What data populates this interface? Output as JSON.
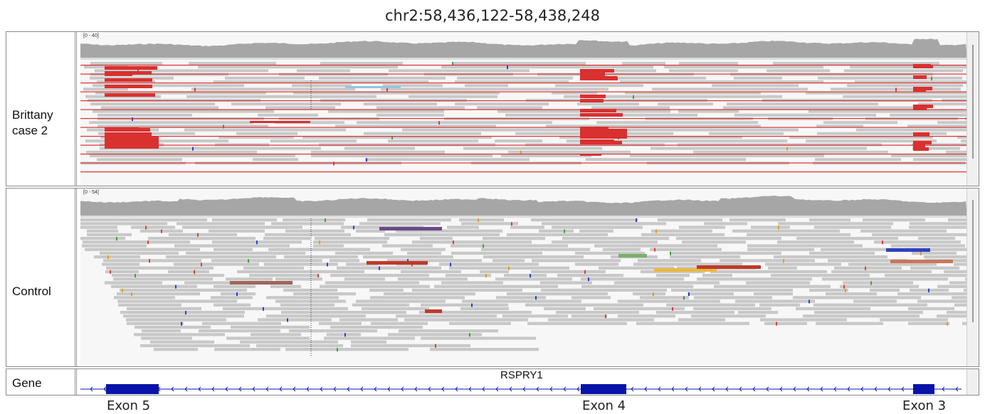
{
  "locus": "chr2:58,436,122-58,438,248",
  "tracks": [
    {
      "id": "brittany",
      "name_line1": "Brittany",
      "name_line2": "case 2",
      "range": "[0 - 40]"
    },
    {
      "id": "control",
      "name": "Control",
      "range": "[0 - 54]"
    }
  ],
  "gene_track": {
    "label": "Gene",
    "gene_name": "RSPRY1"
  },
  "exons": [
    "Exon 5",
    "Exon 4",
    "Exon 3"
  ],
  "colors": {
    "coverage": "#a6a6a6",
    "read": "#c8c8c8",
    "discordant": "#d93030",
    "gene": "#0a13a8",
    "panel_bg": "#f7f7f7"
  }
}
